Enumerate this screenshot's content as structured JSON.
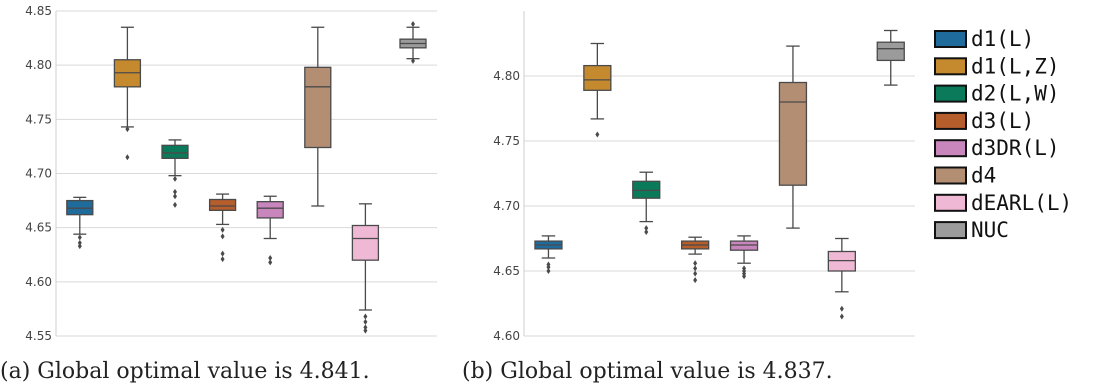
{
  "chart_data": [
    {
      "type": "box",
      "caption": "(a) Global optimal value is 4.841.",
      "ylim": [
        4.55,
        4.85
      ],
      "yticks": [
        4.55,
        4.6,
        4.65,
        4.7,
        4.75,
        4.8,
        4.85
      ],
      "grid": true,
      "boxes": [
        {
          "name": "d1(L)",
          "q1": 4.662,
          "median": 4.668,
          "q3": 4.675,
          "low": 4.644,
          "high": 4.678,
          "outliers": [
            4.641,
            4.636,
            4.633
          ]
        },
        {
          "name": "d1(L,Z)",
          "q1": 4.78,
          "median": 4.793,
          "q3": 4.805,
          "low": 4.743,
          "high": 4.835,
          "outliers": [
            4.741,
            4.715
          ]
        },
        {
          "name": "d2(L,W)",
          "q1": 4.714,
          "median": 4.719,
          "q3": 4.726,
          "low": 4.698,
          "high": 4.731,
          "outliers": [
            4.695,
            4.683,
            4.679,
            4.671
          ]
        },
        {
          "name": "d3(L)",
          "q1": 4.666,
          "median": 4.67,
          "q3": 4.676,
          "low": 4.653,
          "high": 4.681,
          "outliers": [
            4.648,
            4.642,
            4.626,
            4.621
          ]
        },
        {
          "name": "d3DR(L)",
          "q1": 4.659,
          "median": 4.668,
          "q3": 4.674,
          "low": 4.64,
          "high": 4.679,
          "outliers": [
            4.622,
            4.618
          ]
        },
        {
          "name": "d4",
          "q1": 4.724,
          "median": 4.78,
          "q3": 4.798,
          "low": 4.67,
          "high": 4.835,
          "outliers": []
        },
        {
          "name": "dEARL(L)",
          "q1": 4.62,
          "median": 4.64,
          "q3": 4.652,
          "low": 4.574,
          "high": 4.672,
          "outliers": [
            4.568,
            4.563,
            4.558,
            4.555
          ]
        },
        {
          "name": "NUC",
          "q1": 4.816,
          "median": 4.82,
          "q3": 4.824,
          "low": 4.806,
          "high": 4.835,
          "outliers": [
            4.838,
            4.804
          ]
        }
      ]
    },
    {
      "type": "box",
      "caption": "(b) Global optimal value is 4.837.",
      "ylim": [
        4.6,
        4.85
      ],
      "yticks": [
        4.6,
        4.65,
        4.7,
        4.75,
        4.8
      ],
      "grid": true,
      "boxes": [
        {
          "name": "d1(L)",
          "q1": 4.667,
          "median": 4.67,
          "q3": 4.673,
          "low": 4.66,
          "high": 4.677,
          "outliers": [
            4.655,
            4.653,
            4.65
          ]
        },
        {
          "name": "d1(L,Z)",
          "q1": 4.789,
          "median": 4.797,
          "q3": 4.808,
          "low": 4.767,
          "high": 4.825,
          "outliers": [
            4.755
          ]
        },
        {
          "name": "d2(L,W)",
          "q1": 4.706,
          "median": 4.712,
          "q3": 4.719,
          "low": 4.688,
          "high": 4.726,
          "outliers": [
            4.683,
            4.68
          ]
        },
        {
          "name": "d3(L)",
          "q1": 4.667,
          "median": 4.67,
          "q3": 4.673,
          "low": 4.663,
          "high": 4.676,
          "outliers": [
            4.656,
            4.652,
            4.648,
            4.643
          ]
        },
        {
          "name": "d3DR(L)",
          "q1": 4.666,
          "median": 4.67,
          "q3": 4.673,
          "low": 4.656,
          "high": 4.677,
          "outliers": [
            4.652,
            4.65,
            4.648,
            4.646
          ]
        },
        {
          "name": "d4",
          "q1": 4.716,
          "median": 4.78,
          "q3": 4.795,
          "low": 4.683,
          "high": 4.823,
          "outliers": []
        },
        {
          "name": "dEARL(L)",
          "q1": 4.65,
          "median": 4.658,
          "q3": 4.665,
          "low": 4.634,
          "high": 4.675,
          "outliers": [
            4.621,
            4.615
          ]
        },
        {
          "name": "NUC",
          "q1": 4.812,
          "median": 4.821,
          "q3": 4.826,
          "low": 4.793,
          "high": 4.835,
          "outliers": []
        }
      ]
    }
  ],
  "legend": {
    "placement": "right",
    "items": [
      {
        "label": "d1(L)",
        "color": "#1f6c9c"
      },
      {
        "label": "d1(L,Z)",
        "color": "#c68a2e"
      },
      {
        "label": "d2(L,W)",
        "color": "#0b7a5b"
      },
      {
        "label": "d3(L)",
        "color": "#b65d2c"
      },
      {
        "label": "d3DR(L)",
        "color": "#c886bc"
      },
      {
        "label": "d4",
        "color": "#b38e72"
      },
      {
        "label": "dEARL(L)",
        "color": "#efb9d6"
      },
      {
        "label": "NUC",
        "color": "#9b9b9b"
      }
    ]
  }
}
